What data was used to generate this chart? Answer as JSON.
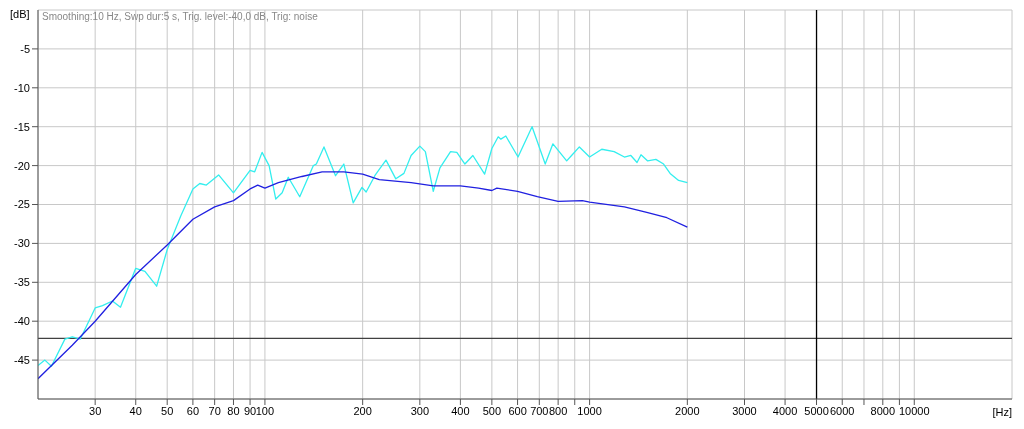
{
  "chart_data": {
    "type": "line",
    "xlabel": "[Hz]",
    "ylabel": "[dB]",
    "log": "x",
    "grid": true,
    "line_style": "solid",
    "marker": "none",
    "annotations": [
      "Smoothing:10 Hz, Swp dur:5 s, Trig. level:-40,0 dB, Trig: noise"
    ],
    "xlim": [
      20,
      20000
    ],
    "ylim": [
      -50,
      0
    ],
    "xticks": [
      30,
      40,
      50,
      60,
      70,
      80,
      90,
      100,
      200,
      300,
      400,
      500,
      600,
      {
        "value": 700,
        "label": "700"
      },
      800,
      {
        "value": 900,
        "label": null
      },
      1000,
      2000,
      3000,
      4000,
      5000,
      6000,
      {
        "value": 7000,
        "label": null
      },
      8000,
      {
        "value": 9000,
        "label": null
      },
      10000
    ],
    "yticks": [
      -45,
      -40,
      -35,
      -30,
      -25,
      -20,
      -15,
      -10,
      -5
    ],
    "ref_lines": [
      {
        "axis": "y",
        "value": -42.2,
        "color": "#404040"
      },
      {
        "axis": "x",
        "value": 5000,
        "color": "#000000"
      }
    ],
    "series": [
      {
        "color": "#33eeee",
        "x": [
          20,
          21,
          22,
          24.2,
          25.5,
          27,
          30,
          31.6,
          33.9,
          35.9,
          40,
          42.7,
          46.4,
          50,
          55,
          60,
          63,
          66,
          72,
          80,
          90,
          93,
          98,
          103,
          108,
          113,
          118,
          128,
          141,
          144,
          152,
          165,
          175,
          187,
          199,
          205,
          218,
          225,
          236,
          253,
          268,
          282,
          300,
          312,
          330,
          346,
          373,
          390,
          413,
          437,
          475,
          500,
          523,
          533,
          552,
          602,
          665,
          730,
          771,
          850,
          880,
          930,
          1000,
          1090,
          1190,
          1280,
          1340,
          1400,
          1440,
          1510,
          1600,
          1690,
          1770,
          1880,
          2000
        ],
        "values": [
          -45.7,
          -45,
          -45.8,
          -42.3,
          -42,
          -42.3,
          -38.3,
          -38,
          -37.4,
          -38.2,
          -33.2,
          -33.6,
          -35.5,
          -30.8,
          -26.5,
          -23,
          -22.3,
          -22.5,
          -21.2,
          -23.5,
          -20.6,
          -20.8,
          -18.3,
          -20,
          -24.3,
          -23.5,
          -21.5,
          -24,
          -20,
          -19.8,
          -17.6,
          -21.3,
          -19.8,
          -24.8,
          -22.8,
          -23.4,
          -21.3,
          -20.5,
          -19.3,
          -21.7,
          -21,
          -18.7,
          -17.5,
          -18.2,
          -23.3,
          -20.3,
          -18.2,
          -18.3,
          -19.8,
          -18.7,
          -21.1,
          -17.8,
          -16.3,
          -16.6,
          -16.2,
          -18.9,
          -15,
          -19.8,
          -17.2,
          -19.4,
          -18.7,
          -17.6,
          -18.9,
          -17.9,
          -18.2,
          -18.9,
          -18.7,
          -19.6,
          -18.6,
          -19.4,
          -19.2,
          -19.8,
          -21,
          -21.9,
          -22.2
        ]
      },
      {
        "color": "#2020e0",
        "x": [
          20,
          25.5,
          30,
          40,
          50,
          60,
          70,
          80,
          90,
          95,
          100,
          110,
          130,
          150,
          175,
          200,
          225,
          282,
          330,
          400,
          455,
          500,
          518,
          600,
          690,
          800,
          950,
          1000,
          1280,
          1500,
          1730,
          2000
        ],
        "values": [
          -47.4,
          -43.1,
          -40,
          -34,
          -30.2,
          -26.9,
          -25.3,
          -24.5,
          -23,
          -22.5,
          -22.9,
          -22.2,
          -21.4,
          -20.8,
          -20.8,
          -21.1,
          -21.8,
          -22.2,
          -22.6,
          -22.6,
          -22.9,
          -23.2,
          -22.9,
          -23.3,
          -24,
          -24.6,
          -24.5,
          -24.7,
          -25.3,
          -26,
          -26.7,
          -27.9
        ]
      }
    ]
  }
}
